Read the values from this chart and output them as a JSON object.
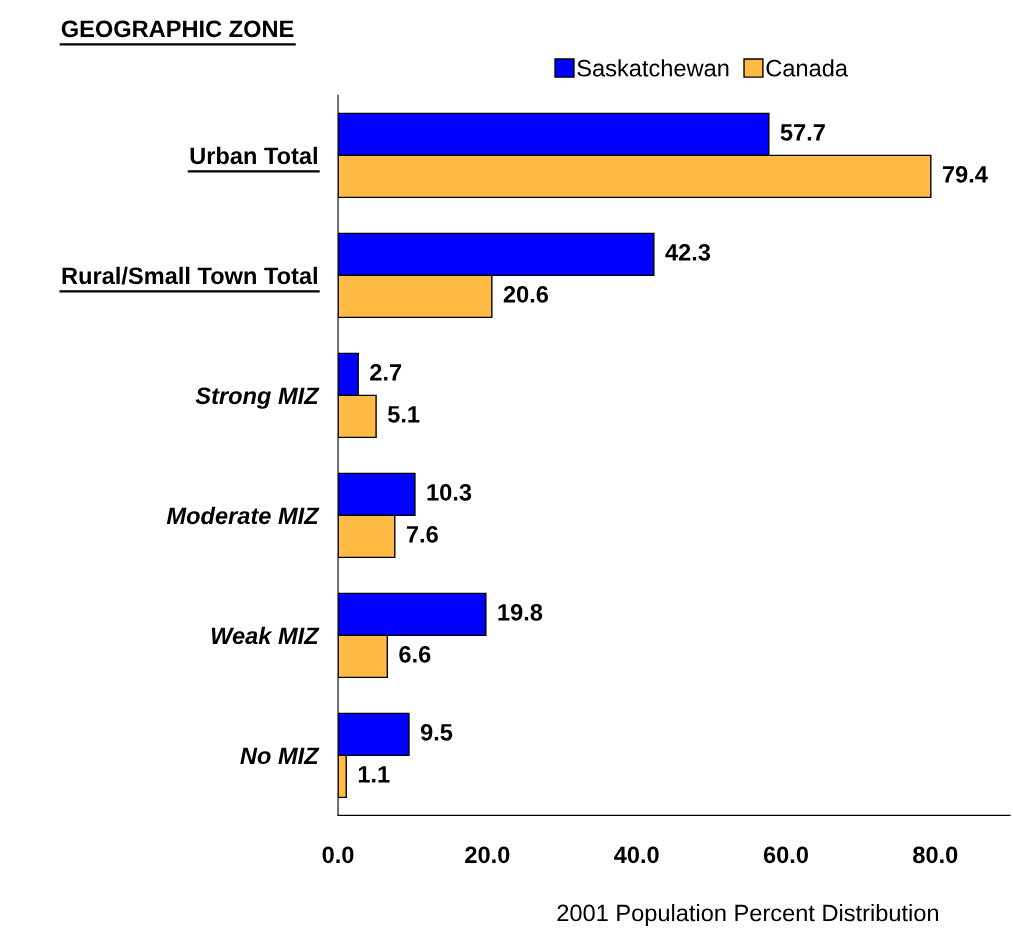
{
  "chart_data": {
    "type": "bar",
    "orientation": "horizontal",
    "title": "GEOGRAPHIC ZONE",
    "xlabel": "2001 Population Percent Distribution",
    "categories": [
      "Urban Total",
      "Rural/Small Town Total",
      "Strong MIZ",
      "Moderate MIZ",
      "Weak MIZ",
      "No MIZ"
    ],
    "series": [
      {
        "name": "Saskatchewan",
        "color": "#0000ff",
        "values": [
          57.7,
          42.3,
          2.7,
          10.3,
          19.8,
          9.5
        ]
      },
      {
        "name": "Canada",
        "color": "#ffbb44",
        "values": [
          79.4,
          20.6,
          5.1,
          7.6,
          6.6,
          1.1
        ]
      }
    ],
    "xlim": [
      0,
      90
    ],
    "xticks": [
      {
        "value": 0,
        "label": "0.0"
      },
      {
        "value": 20,
        "label": "20.0"
      },
      {
        "value": 40,
        "label": "40.0"
      },
      {
        "value": 60,
        "label": "60.0"
      },
      {
        "value": 80,
        "label": "80.0"
      }
    ],
    "data_labels": true,
    "grid": false,
    "legend": "top right"
  }
}
